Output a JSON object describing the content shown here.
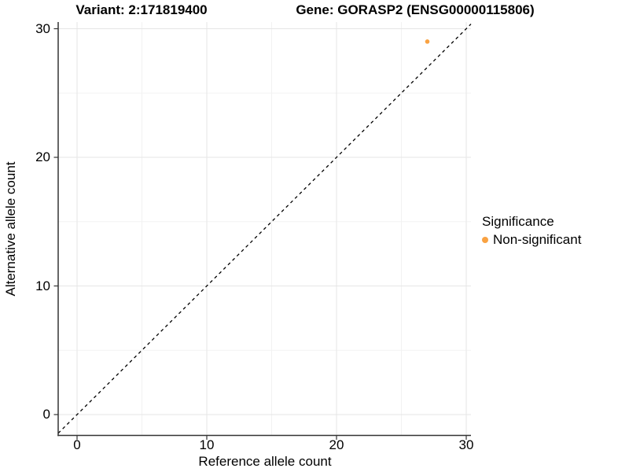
{
  "titles": {
    "variant": "Variant: 2:171819400",
    "gene": "Gene: GORASP2 (ENSG00000115806)"
  },
  "axes": {
    "x_label": "Reference allele count",
    "y_label": "Alternative allele count"
  },
  "legend": {
    "title": "Significance",
    "position": "right",
    "items": [
      {
        "label": "Non-significant",
        "color": "#F9A242",
        "marker": "dot"
      }
    ]
  },
  "colors": {
    "point": "#F9A242",
    "grid_major": "#E6E6E6",
    "grid_minor": "#F2F2F2",
    "axis_line": "#333333",
    "identity_line": "#000000",
    "background": "#FFFFFF"
  },
  "chart_data": {
    "type": "scatter",
    "title": "Variant: 2:171819400 | Gene: GORASP2 (ENSG00000115806)",
    "xlabel": "Reference allele count",
    "ylabel": "Alternative allele count",
    "xlim": [
      -1.5,
      30.4
    ],
    "ylim": [
      -1.6,
      30.5
    ],
    "x_ticks": [
      0,
      10,
      20,
      30
    ],
    "y_ticks": [
      0,
      10,
      20,
      30
    ],
    "x_minor": [
      5,
      15,
      25
    ],
    "y_minor": [
      5,
      15,
      25
    ],
    "grid": true,
    "legend_position": "right",
    "series": [
      {
        "name": "Non-significant",
        "color": "#F9A242",
        "points": [
          {
            "x": 27,
            "y": 29
          }
        ]
      }
    ],
    "reference_line": {
      "type": "identity",
      "style": "dashed",
      "color": "#000000",
      "slope": 1,
      "intercept": 0
    }
  }
}
